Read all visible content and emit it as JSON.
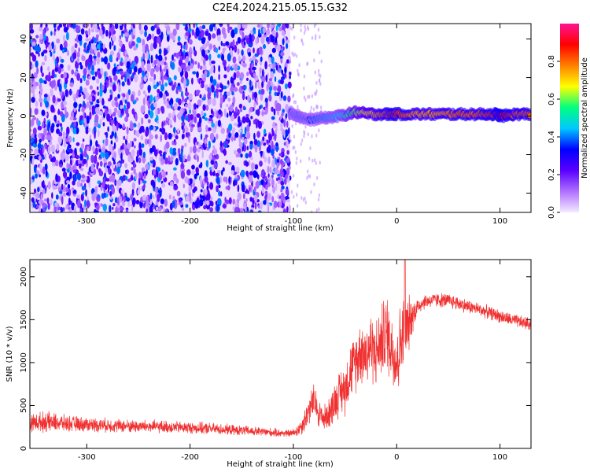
{
  "figure_title": "C2E4.2024.215.05.15.G32",
  "chart_data": [
    {
      "type": "heatmap",
      "title": "",
      "xlabel": "Height of straight line (km)",
      "ylabel": "Frequency (Hz)",
      "xlim": [
        -355,
        130
      ],
      "ylim": [
        -50,
        48
      ],
      "xticks": [
        -300,
        -200,
        -100,
        0,
        100
      ],
      "yticks": [
        -40,
        -20,
        0,
        20,
        40
      ],
      "colorbar": {
        "label": "Normalized spectral amplitude",
        "range": [
          0,
          1
        ],
        "ticks": [
          0.0,
          0.2,
          0.4,
          0.6,
          0.8
        ],
        "colormap": [
          "#f4eaff",
          "#b070ff",
          "#5a00ff",
          "#0000ff",
          "#00c8ff",
          "#00ff80",
          "#ffff00",
          "#ff8000",
          "#ff0000",
          "#ff1493"
        ]
      },
      "noise_region_x": [
        -355,
        -103
      ],
      "signal_track": [
        {
          "x": -103,
          "freq": 2,
          "amp": 0.35
        },
        {
          "x": -95,
          "freq": 0,
          "amp": 0.4
        },
        {
          "x": -85,
          "freq": -2,
          "amp": 0.35
        },
        {
          "x": -70,
          "freq": -1,
          "amp": 0.4
        },
        {
          "x": -55,
          "freq": 0,
          "amp": 0.45
        },
        {
          "x": -40,
          "freq": 2,
          "amp": 0.6
        },
        {
          "x": -25,
          "freq": 1,
          "amp": 0.7
        },
        {
          "x": -10,
          "freq": 1,
          "amp": 0.8
        },
        {
          "x": 0,
          "freq": 1,
          "amp": 0.85
        },
        {
          "x": 20,
          "freq": 1,
          "amp": 0.75
        },
        {
          "x": 40,
          "freq": 1,
          "amp": 0.75
        },
        {
          "x": 60,
          "freq": 1,
          "amp": 0.8
        },
        {
          "x": 80,
          "freq": 1,
          "amp": 0.8
        },
        {
          "x": 95,
          "freq": 1,
          "amp": 0.85
        },
        {
          "x": 102,
          "freq": 0,
          "amp": 0.9
        },
        {
          "x": 115,
          "freq": 1,
          "amp": 0.8
        },
        {
          "x": 130,
          "freq": 1,
          "amp": 0.8
        }
      ]
    },
    {
      "type": "line",
      "title": "",
      "xlabel": "Height of straight line (km)",
      "ylabel": "SNR (10 * v/v)",
      "xlim": [
        -355,
        130
      ],
      "ylim": [
        0,
        2200
      ],
      "xticks": [
        -300,
        -200,
        -100,
        0,
        100
      ],
      "yticks": [
        0,
        500,
        1000,
        1500,
        2000
      ],
      "series_color": "#f03030",
      "series": [
        {
          "x": [
            -355,
            -340,
            -320,
            -300,
            -280,
            -260,
            -240,
            -220,
            -200,
            -180,
            -160,
            -140,
            -120,
            -105,
            -100,
            -95,
            -90,
            -85,
            -80,
            -75,
            -70,
            -65,
            -60,
            -55,
            -50,
            -45,
            -40,
            -35,
            -30,
            -25,
            -20,
            -15,
            -10,
            -5,
            0,
            5,
            10,
            15,
            20,
            25,
            30,
            40,
            50,
            60,
            70,
            80,
            90,
            100,
            110,
            120,
            130
          ],
          "y": [
            300,
            310,
            290,
            280,
            270,
            260,
            255,
            250,
            240,
            230,
            215,
            200,
            185,
            175,
            180,
            220,
            300,
            450,
            550,
            400,
            350,
            420,
            550,
            650,
            700,
            900,
            1000,
            1150,
            1100,
            1200,
            1100,
            1250,
            1350,
            1200,
            1000,
            1300,
            1400,
            1550,
            1650,
            1700,
            1720,
            1730,
            1720,
            1690,
            1650,
            1620,
            1580,
            1540,
            1500,
            1470,
            1450
          ],
          "noise_amplitude": [
            120,
            140,
            110,
            100,
            95,
            90,
            90,
            85,
            80,
            80,
            70,
            65,
            60,
            50,
            60,
            90,
            150,
            200,
            250,
            200,
            180,
            220,
            280,
            300,
            350,
            380,
            400,
            450,
            450,
            480,
            450,
            500,
            550,
            500,
            550,
            550,
            450,
            250,
            130,
            110,
            100,
            100,
            100,
            100,
            95,
            90,
            90,
            90,
            90,
            90,
            90
          ],
          "peak": {
            "x": 8,
            "y": 2200
          }
        }
      ]
    }
  ]
}
